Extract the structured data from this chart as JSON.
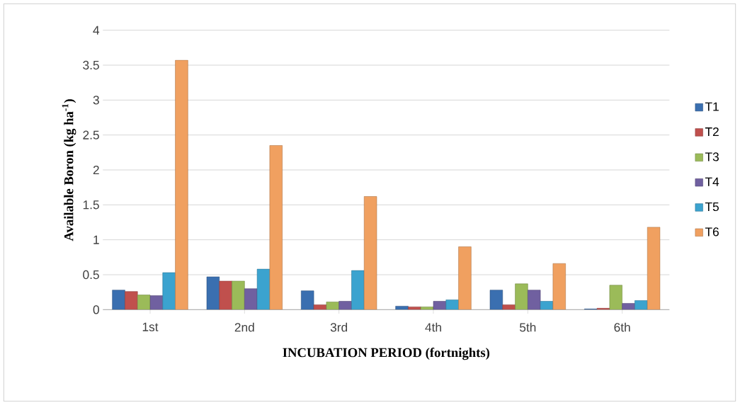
{
  "chart_data": {
    "type": "bar",
    "xlabel": "INCUBATION PERIOD (fortnights)",
    "ylabel": "Available Boron (kg ha$^{-1}$)",
    "categories": [
      "1st",
      "2nd",
      "3rd",
      "4th",
      "5th",
      "6th"
    ],
    "series": [
      {
        "name": "T1",
        "color": "#3a6fb0",
        "values": [
          0.28,
          0.47,
          0.27,
          0.05,
          0.28,
          0.01
        ]
      },
      {
        "name": "T2",
        "color": "#c0504d",
        "values": [
          0.26,
          0.41,
          0.07,
          0.04,
          0.07,
          0.02
        ]
      },
      {
        "name": "T3",
        "color": "#9bbb59",
        "values": [
          0.21,
          0.41,
          0.11,
          0.04,
          0.37,
          0.35
        ]
      },
      {
        "name": "T4",
        "color": "#7060a0",
        "values": [
          0.2,
          0.3,
          0.12,
          0.12,
          0.28,
          0.09
        ]
      },
      {
        "name": "T5",
        "color": "#3ba3cf",
        "values": [
          0.53,
          0.58,
          0.56,
          0.14,
          0.12,
          0.13
        ]
      },
      {
        "name": "T6",
        "color": "#f0a060",
        "values": [
          3.57,
          2.35,
          1.62,
          0.9,
          0.66,
          1.18
        ]
      }
    ],
    "ylim": [
      0,
      4
    ],
    "yticks": [
      0,
      0.5,
      1,
      1.5,
      2,
      2.5,
      3,
      3.5,
      4
    ],
    "grid": "y",
    "legend": "right"
  }
}
